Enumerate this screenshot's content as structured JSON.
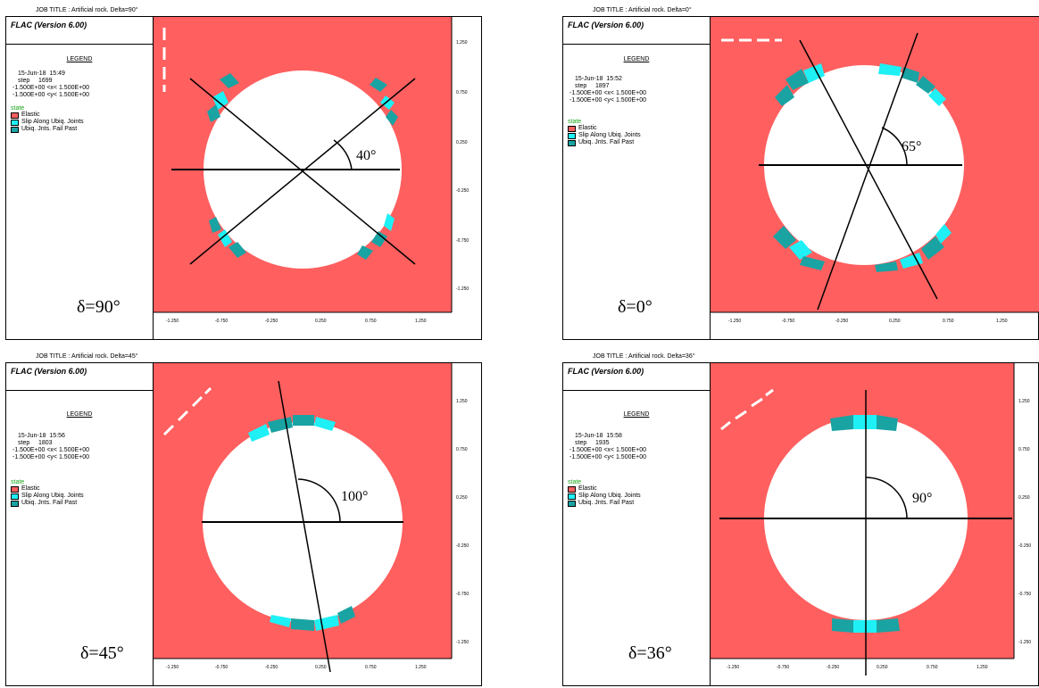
{
  "colors": {
    "elastic": "#ff5f5f",
    "slip_along": "#1ef0f5",
    "fail_past": "#1aa3a3",
    "state_label": "#1aa51a",
    "hole": "#ffffff"
  },
  "common": {
    "flac": "FLAC (Version 6.00)",
    "legend": "LEGEND",
    "xrange": "-1.500E+00 <x< 1.500E+00",
    "yrange": "-1.500E+00 <y< 1.500E+00",
    "state": "state",
    "elastic": "Elastic",
    "slip": "Slip Along Ubiq. Joints",
    "fail": "Ubiq. Jnts. Fail Past",
    "xticks": [
      "-1.250",
      "-0.750",
      "-0.250",
      "0.250",
      "0.750",
      "1.250"
    ],
    "yticks": [
      "1.250",
      "0.750",
      "0.250",
      "-0.250",
      "-0.750",
      "-1.250"
    ]
  },
  "panels": [
    {
      "id": "p1",
      "job_title": "JOB TITLE : Artificial rock. Delta=90°",
      "date": "15-Jun-18  15:49",
      "step": "step     1699",
      "delta": "δ=90°",
      "angle": "40°",
      "dash_orientation": "vertical"
    },
    {
      "id": "p2",
      "job_title": "JOB TITLE : Artificial rock. Delta=0°",
      "date": "15-Jun-18  15:52",
      "step": "step     1897",
      "delta": "δ=0°",
      "angle": "65°",
      "dash_orientation": "horizontal"
    },
    {
      "id": "p3",
      "job_title": "JOB TITLE : Artificial rock. Delta=45°",
      "date": "15-Jun-18  15:56",
      "step": "step     1803",
      "delta": "δ=45°",
      "angle": "100°",
      "dash_orientation": "diagonal"
    },
    {
      "id": "p4",
      "job_title": "JOB TITLE : Artificial rock. Delta=36°",
      "date": "15-Jun-18  15:58",
      "step": "step     1935",
      "delta": "δ=36°",
      "angle": "90°",
      "dash_orientation": "diagonal"
    }
  ]
}
